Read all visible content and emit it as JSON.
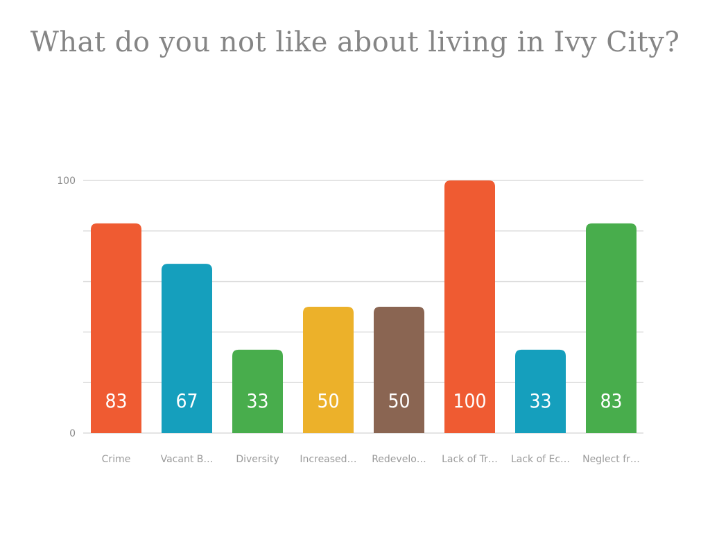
{
  "title": "What do you not like about living in Ivy City?",
  "chart_data": {
    "type": "bar",
    "title": "What do you not like about living in Ivy City?",
    "categories": [
      "Crime",
      "Vacant B…",
      "Diversity",
      "Increased…",
      "Redevelo…",
      "Lack of Tr…",
      "Lack of Ec…",
      "Neglect fr…"
    ],
    "values": [
      83,
      67,
      33,
      50,
      50,
      100,
      33,
      83
    ],
    "colors": [
      "#ef5b32",
      "#159fbd",
      "#48ad4c",
      "#ecb12a",
      "#8a6552",
      "#ef5b32",
      "#159fbd",
      "#48ad4c"
    ],
    "ylim": [
      0,
      100
    ],
    "y_tick_labels": [
      "0",
      "100"
    ],
    "gridlines": [
      0,
      20,
      40,
      60,
      80,
      100
    ],
    "grid": true,
    "xlabel": "",
    "ylabel": ""
  }
}
